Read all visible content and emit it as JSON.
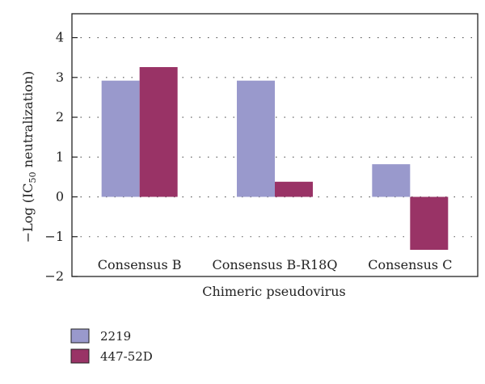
{
  "chart_data": {
    "type": "bar",
    "categories": [
      "Consensus B",
      "Consensus B-R18Q",
      "Consensus C"
    ],
    "series": [
      {
        "name": "2219",
        "color": "#9999cc",
        "values": [
          2.92,
          2.92,
          0.82
        ]
      },
      {
        "name": "447-52D",
        "color": "#993366",
        "values": [
          3.26,
          0.38,
          -1.33
        ]
      }
    ],
    "xlabel": "Chimeric pseudovirus",
    "ylabel_prefix": "−Log (IC",
    "ylabel_sub": "50",
    "ylabel_suffix": " neutralization)",
    "ylim": [
      -2,
      4.6
    ],
    "yticks": [
      -2,
      -1,
      0,
      1,
      2,
      3,
      4
    ],
    "ytick_labels": [
      "−2",
      "−1",
      "0",
      "1",
      "2",
      "3",
      "4"
    ],
    "grid": "horizontal dotted",
    "legend_position": "bottom-left"
  }
}
